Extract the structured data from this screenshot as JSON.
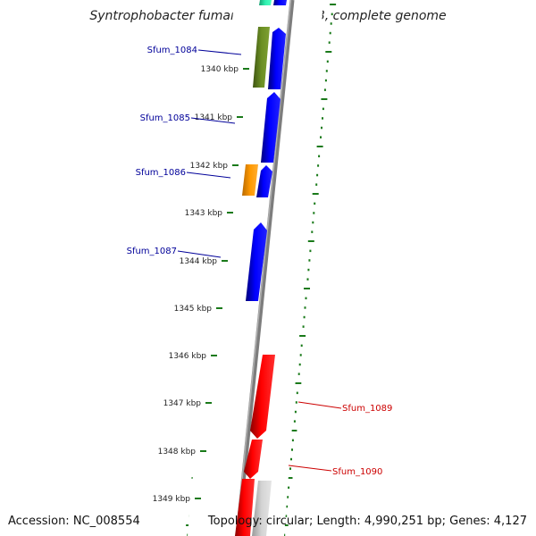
{
  "title": "Syntrophobacter fumaroxidans MPOB, complete genome",
  "footer": {
    "accession": "Accession: NC_008554",
    "summary": "Topology: circular; Length: 4,990,251 bp; Genes: 4,127"
  },
  "colors": {
    "forward_cds": "#0000ee",
    "reverse_cds": "#ee0000",
    "backbone": "#888888",
    "ticks": "#1a7a1a",
    "label_forward": "#000099",
    "label_reverse": "#cc0000",
    "orange_feature": "#ff9900",
    "olive_feature": "#6b8e23",
    "teal_feature": "#2ee8a8",
    "gray_feature": "#c8c8c8"
  },
  "ruler": [
    "1340 kbp",
    "1341 kbp",
    "1342 kbp",
    "1343 kbp",
    "1344 kbp",
    "1345 kbp",
    "1346 kbp",
    "1347 kbp",
    "1348 kbp",
    "1349 kbp"
  ],
  "gene_labels": [
    {
      "text": "Sfum_1084",
      "strand": "forward"
    },
    {
      "text": "Sfum_1085",
      "strand": "forward"
    },
    {
      "text": "Sfum_1086",
      "strand": "forward"
    },
    {
      "text": "Sfum_1087",
      "strand": "forward"
    },
    {
      "text": "Sfum_1089",
      "strand": "reverse"
    },
    {
      "text": "Sfum_1090",
      "strand": "reverse"
    }
  ]
}
